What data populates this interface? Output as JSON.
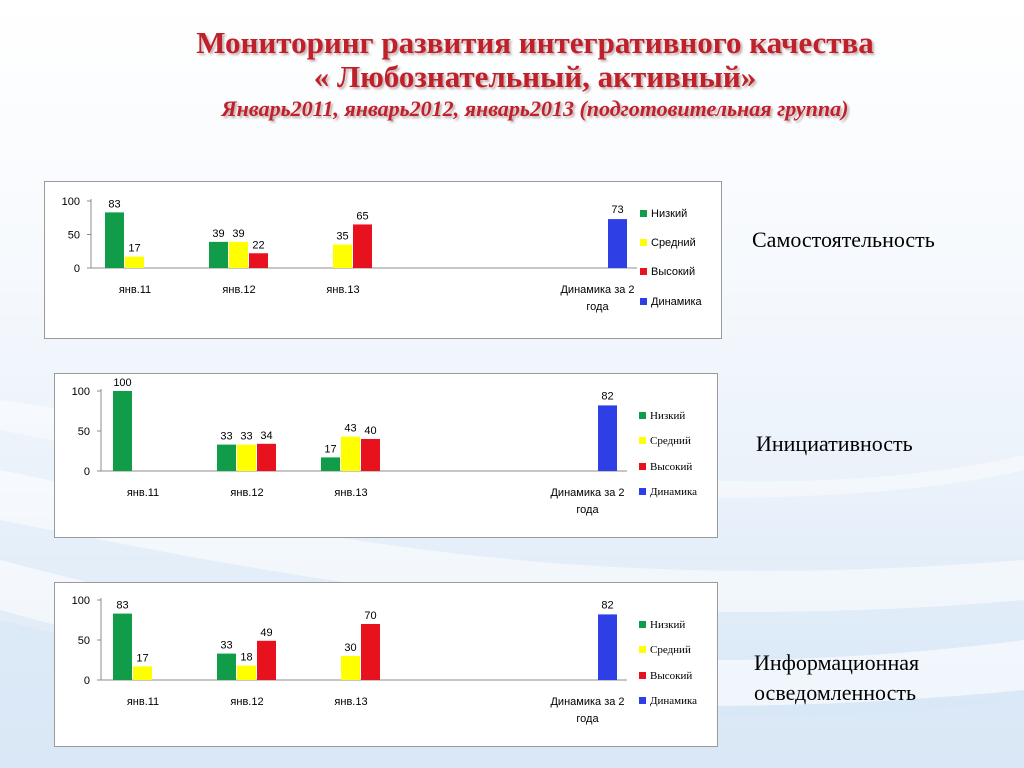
{
  "title": {
    "line1": "Мониторинг развития интегративного качества",
    "line2": "« Любознательный, активный»",
    "line3": "Январь2011, январь2012, январь2013 (подготовительная группа)"
  },
  "legend": [
    "Низкий",
    "Средний",
    "Высокий",
    "Динамика"
  ],
  "colors": {
    "Низкий": "#109c48",
    "Средний": "#ffff00",
    "Высокий": "#e8121e",
    "Динамика": "#2f3fe6"
  },
  "chart_data": [
    {
      "type": "bar",
      "label": "Самостоятельность",
      "categories": [
        "янв.11",
        "янв.12",
        "янв.13",
        "Динамика за 2 года"
      ],
      "ylim": [
        0,
        100
      ],
      "yticks": [
        0,
        50,
        100
      ],
      "series": [
        {
          "name": "Низкий",
          "values": [
            83,
            39,
            null,
            null
          ]
        },
        {
          "name": "Средний",
          "values": [
            17,
            39,
            35,
            null
          ]
        },
        {
          "name": "Высокий",
          "values": [
            null,
            22,
            65,
            null
          ]
        },
        {
          "name": "Динамика",
          "values": [
            null,
            null,
            null,
            73
          ]
        }
      ]
    },
    {
      "type": "bar",
      "label": "Инициативность",
      "categories": [
        "янв.11",
        "янв.12",
        "янв.13",
        "Динамика за 2 года"
      ],
      "ylim": [
        0,
        100
      ],
      "yticks": [
        0,
        50,
        100
      ],
      "series": [
        {
          "name": "Низкий",
          "values": [
            100,
            33,
            17,
            null
          ]
        },
        {
          "name": "Средний",
          "values": [
            null,
            33,
            43,
            null
          ]
        },
        {
          "name": "Высокий",
          "values": [
            null,
            34,
            40,
            null
          ]
        },
        {
          "name": "Динамика",
          "values": [
            null,
            null,
            null,
            82
          ]
        }
      ]
    },
    {
      "type": "bar",
      "label": "Информационная осведомленность",
      "categories": [
        "янв.11",
        "янв.12",
        "янв.13",
        "Динамика за 2 года"
      ],
      "ylim": [
        0,
        100
      ],
      "yticks": [
        0,
        50,
        100
      ],
      "series": [
        {
          "name": "Низкий",
          "values": [
            83,
            33,
            null,
            null
          ]
        },
        {
          "name": "Средний",
          "values": [
            17,
            18,
            30,
            null
          ]
        },
        {
          "name": "Высокий",
          "values": [
            null,
            49,
            70,
            null
          ]
        },
        {
          "name": "Динамика",
          "values": [
            null,
            null,
            null,
            82
          ]
        }
      ]
    }
  ]
}
